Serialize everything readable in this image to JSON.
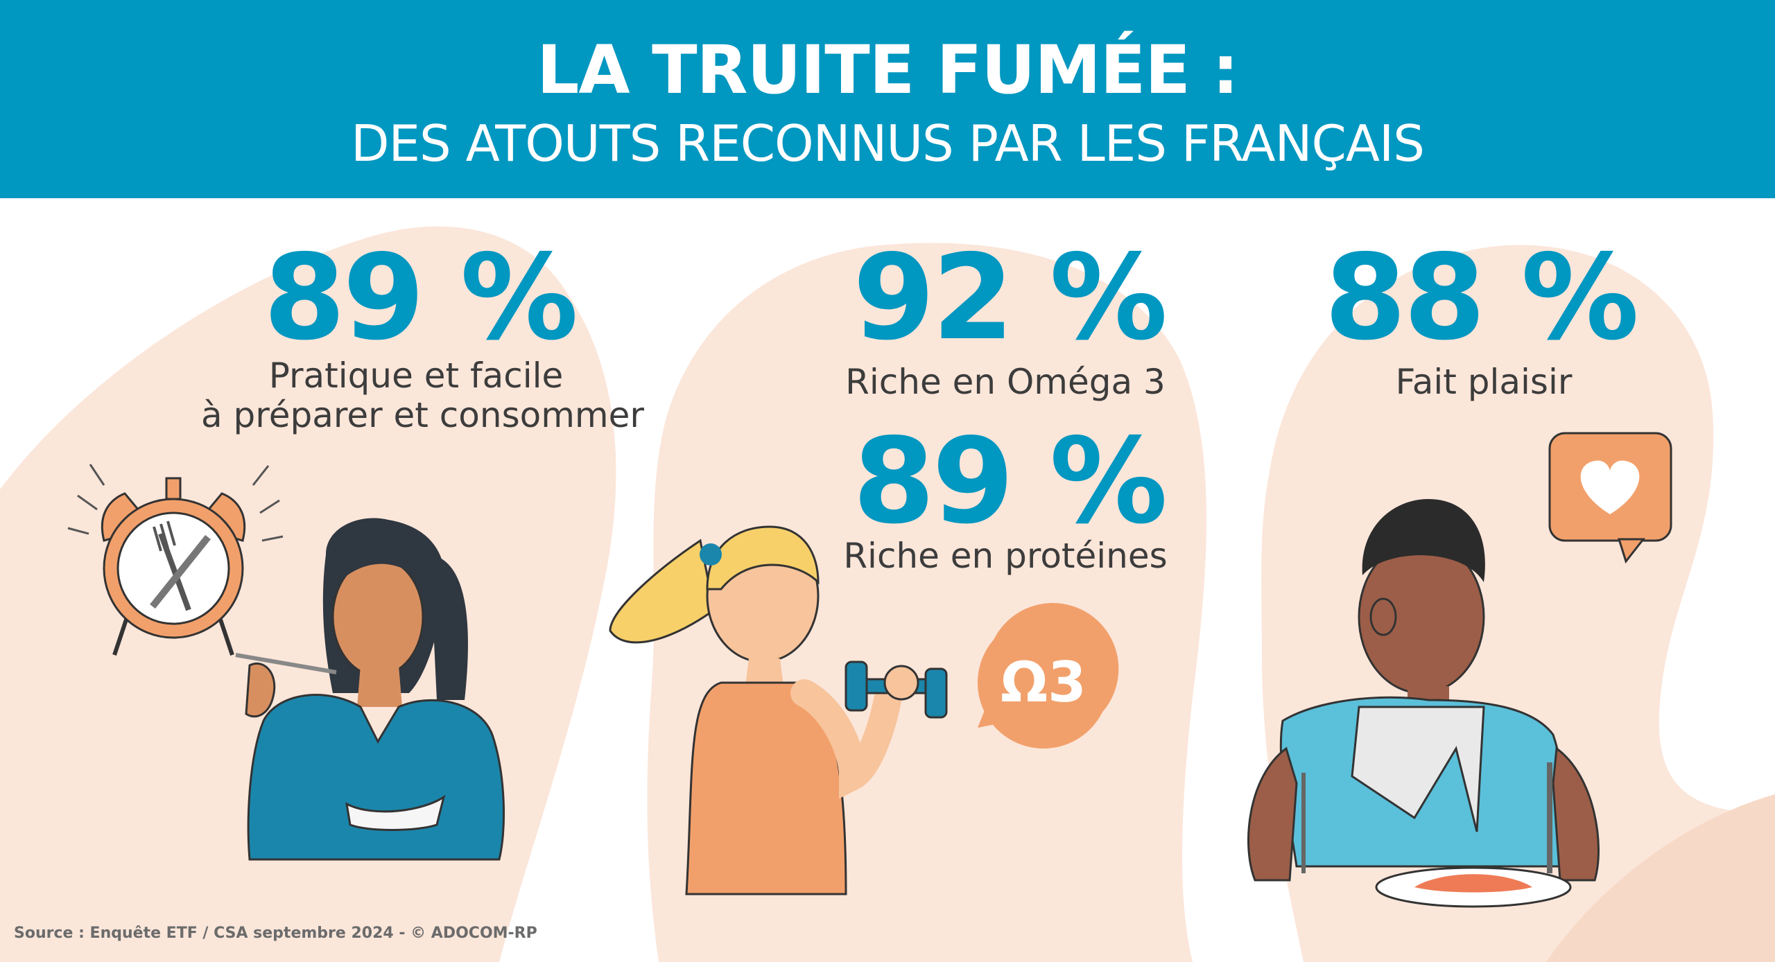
{
  "header": {
    "title": "LA TRUITE FUMÉE :",
    "subtitle": "DES ATOUTS RECONNUS PAR LES FRANÇAIS"
  },
  "stats": [
    {
      "value": "89 %",
      "label_line1": "Pratique et facile",
      "label_line2": "à préparer et consommer"
    },
    {
      "value": "92 %",
      "label_line1": "Riche en Oméga 3"
    },
    {
      "value": "89 %",
      "label_line1": "Riche en protéines"
    },
    {
      "value": "88 %",
      "label_line1": "Fait plaisir"
    }
  ],
  "badges": {
    "omega": "Ω3"
  },
  "icons": [
    "alarm-clock-icon",
    "fork-icon",
    "knife-icon",
    "dumbbell-icon",
    "heart-icon",
    "speech-bubble-icon"
  ],
  "colors": {
    "header_bg": "#0097c1",
    "accent_blue": "#0097c1",
    "blob_peach": "#fbe6da",
    "orange": "#f2a06b",
    "text_dark": "#3c3c3c"
  },
  "source": "Source : Enquête ETF / CSA septembre 2024 - © ADOCOM-RP"
}
